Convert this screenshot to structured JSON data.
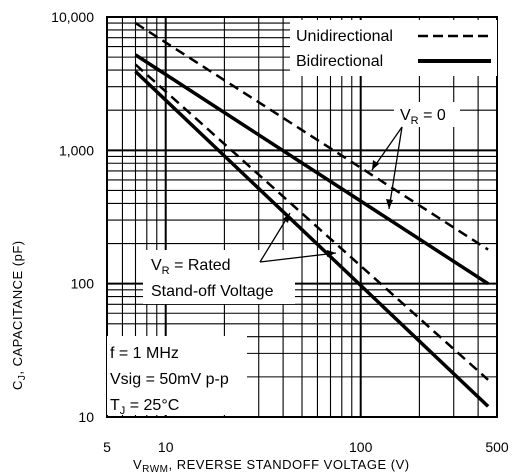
{
  "chart_data": {
    "type": "line",
    "x_scale": "log",
    "y_scale": "log",
    "xlim": [
      5,
      500
    ],
    "ylim": [
      10,
      10000
    ],
    "grid": true,
    "x_tick_labels": [
      {
        "value": 5,
        "label": "5"
      },
      {
        "value": 10,
        "label": "10"
      },
      {
        "value": 100,
        "label": "100"
      },
      {
        "value": 500,
        "label": "500"
      }
    ],
    "y_tick_labels": [
      {
        "value": 10,
        "label": "10"
      },
      {
        "value": 100,
        "label": "100"
      },
      {
        "value": 1000,
        "label": "1,000"
      },
      {
        "value": 10000,
        "label": "10,000"
      }
    ],
    "xlabel": {
      "main": "V",
      "sub": "RWM",
      "rest": ", REVERSE    STANDOFF  VOLTAGE  (V)"
    },
    "ylabel": {
      "main": "C",
      "sub": "J",
      "rest": ", CAPACITANCE  (pF)"
    },
    "legend": {
      "placement": "top-right",
      "entries": [
        {
          "label": "Unidirectional",
          "style": "dashed"
        },
        {
          "label": "Bidirectional",
          "style": "solid"
        }
      ]
    },
    "series": [
      {
        "name": "Unidirectional",
        "condition": "V_R = 0",
        "style": "dashed",
        "x": [
          7,
          450
        ],
        "y": [
          9000,
          180
        ]
      },
      {
        "name": "Bidirectional",
        "condition": "V_R = 0",
        "style": "solid",
        "x": [
          7,
          450
        ],
        "y": [
          5200,
          100
        ]
      },
      {
        "name": "Unidirectional",
        "condition": "V_R = Rated Stand-off Voltage",
        "style": "dashed",
        "x": [
          7,
          450
        ],
        "y": [
          4400,
          19
        ]
      },
      {
        "name": "Bidirectional",
        "condition": "V_R = Rated Stand-off Voltage",
        "style": "solid",
        "x": [
          7,
          450
        ],
        "y": [
          3900,
          12
        ]
      }
    ],
    "annotations": {
      "vr_zero": {
        "main": "V",
        "sub": "R",
        "rest": " = 0"
      },
      "vr_rated": {
        "main": "V",
        "sub": "R",
        "rest": " = Rated",
        "line2": "Stand-off Voltage"
      },
      "conditions": {
        "line1": "f = 1 MHz",
        "line2": "Vsig = 50mV p-p",
        "line3_main": "T",
        "line3_sub": "J",
        "line3_rest": " = 25°C"
      }
    }
  }
}
